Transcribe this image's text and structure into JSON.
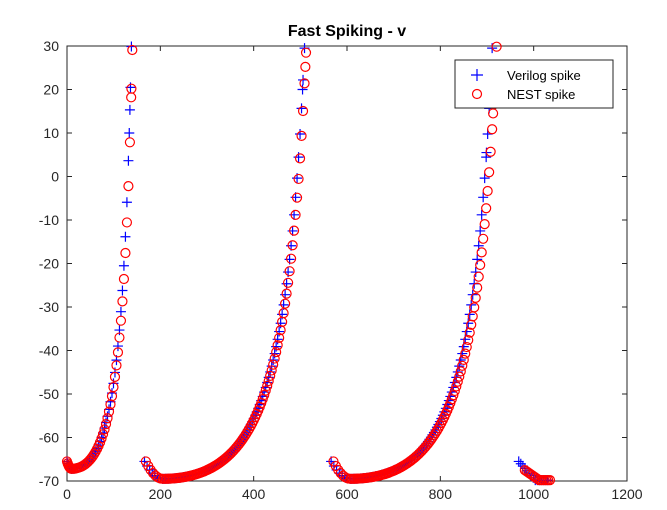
{
  "chart_data": {
    "type": "scatter",
    "title": "Fast Spiking - v",
    "xlabel": "",
    "ylabel": "",
    "xlim": [
      0,
      1200
    ],
    "ylim": [
      -70,
      30
    ],
    "xticks": [
      0,
      200,
      400,
      600,
      800,
      1000,
      1200
    ],
    "yticks": [
      -70,
      -60,
      -50,
      -40,
      -30,
      -20,
      -10,
      0,
      10,
      20,
      30
    ],
    "grid": false,
    "legend_position": "top-right",
    "series": [
      {
        "name": "Verilog spike",
        "marker": "plus",
        "color": "#0000ff",
        "segments": [
          {
            "x_start": 0,
            "x_end": 165,
            "y_start": -65.5,
            "y_end": 10,
            "min_x": 10,
            "min_y": -67.2,
            "k": 0.16
          },
          {
            "x_start": 166,
            "x_end": 565,
            "y_start": -65.5,
            "y_end": 20,
            "min_x": 205,
            "min_y": -69.5,
            "k": 0.06
          },
          {
            "x_start": 566,
            "x_end": 967,
            "y_start": -65.5,
            "y_end": 5.5,
            "min_x": 607,
            "min_y": -69.5,
            "k": 0.06
          },
          {
            "x_start": 968,
            "x_end": 1030,
            "y_start": -65.5,
            "y_end": -69.8,
            "min_x": 1010,
            "min_y": -69.8,
            "k": 0.0
          }
        ]
      },
      {
        "name": "NEST spike",
        "marker": "circle",
        "color": "#ff0000",
        "segments": [
          {
            "x_start": 0,
            "x_end": 168,
            "y_start": -65.5,
            "y_end": 18.2,
            "min_x": 10,
            "min_y": -67.2,
            "k": 0.16
          },
          {
            "x_start": 169,
            "x_end": 570,
            "y_start": -65.5,
            "y_end": 25.2,
            "min_x": 205,
            "min_y": -69.5,
            "k": 0.06
          },
          {
            "x_start": 571,
            "x_end": 980,
            "y_start": -65.5,
            "y_end": 14.5,
            "min_x": 607,
            "min_y": -69.5,
            "k": 0.06
          },
          {
            "x_start": 981,
            "x_end": 1035,
            "y_start": -67.5,
            "y_end": -69.8,
            "min_x": 1020,
            "min_y": -69.8,
            "k": 0.0
          }
        ]
      }
    ],
    "legend_entries": [
      "Verilog spike",
      "NEST spike"
    ]
  }
}
